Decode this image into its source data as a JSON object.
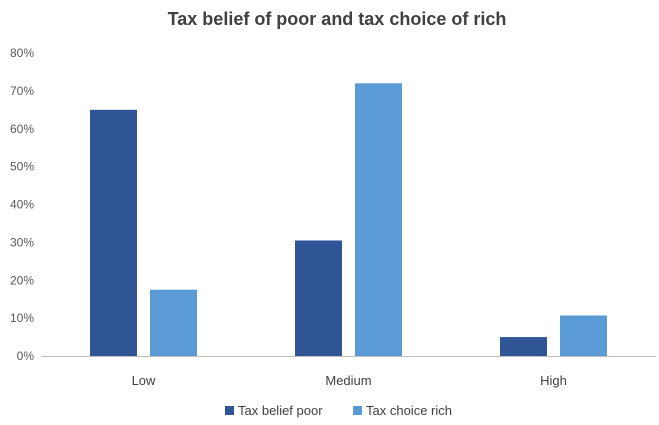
{
  "chart_data": {
    "type": "bar",
    "title": "Tax belief of poor and tax choice of rich",
    "xlabel": "",
    "ylabel": "",
    "categories": [
      "Low",
      "Medium",
      "High"
    ],
    "series": [
      {
        "name": "Tax belief poor",
        "values": [
          0.65,
          0.305,
          0.05
        ],
        "color": "#2f5597"
      },
      {
        "name": "Tax choice rich",
        "values": [
          0.175,
          0.72,
          0.107
        ],
        "color": "#5b9bd5"
      }
    ],
    "ylim": [
      0,
      0.8
    ],
    "yticks": [
      "0%",
      "10%",
      "20%",
      "30%",
      "40%",
      "50%",
      "60%",
      "70%",
      "80%"
    ],
    "grid": false,
    "legend_position": "bottom"
  }
}
